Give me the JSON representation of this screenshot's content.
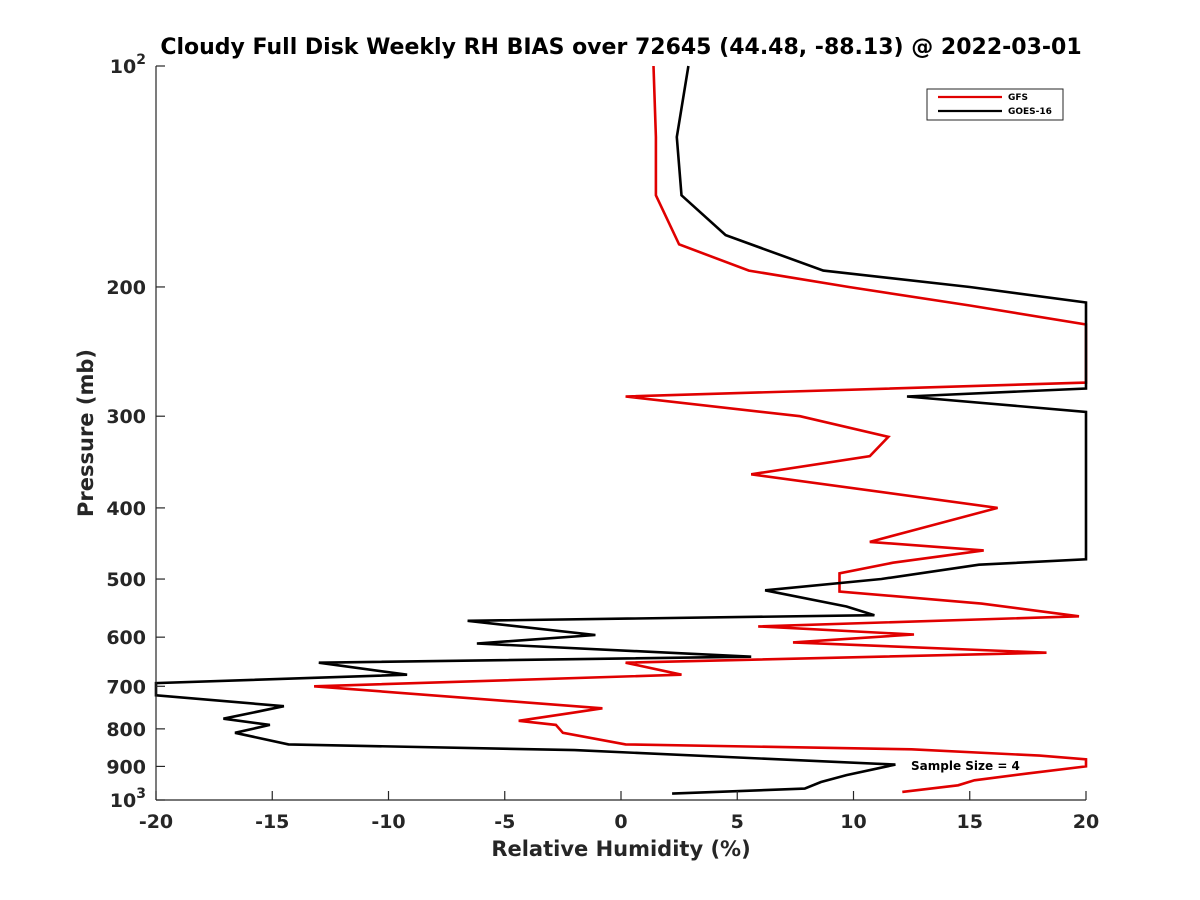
{
  "chart_data": {
    "type": "line",
    "title": "Cloudy Full Disk Weekly RH BIAS over 72645 (44.48, -88.13) @ 2022-03-01",
    "xlabel": "Relative Humidity (%)",
    "ylabel": "Pressure (mb)",
    "xlim": [
      -20,
      20
    ],
    "ylim": [
      100,
      1000
    ],
    "y_scale": "log",
    "y_reversed": true,
    "grid": false,
    "legend_placement": "top-right",
    "xticks": [
      -20,
      -15,
      -10,
      -5,
      0,
      5,
      10,
      15,
      20
    ],
    "xtick_labels": [
      "-20",
      "-15",
      "-10",
      "-5",
      "0",
      "5",
      "10",
      "15",
      "20"
    ],
    "yticks": [
      100,
      200,
      300,
      400,
      500,
      600,
      700,
      800,
      900,
      1000
    ],
    "ytick_labels": [
      {
        "base": "10",
        "exp": "2"
      },
      {
        "base": "200",
        "exp": ""
      },
      {
        "base": "300",
        "exp": ""
      },
      {
        "base": "400",
        "exp": ""
      },
      {
        "base": "500",
        "exp": ""
      },
      {
        "base": "600",
        "exp": ""
      },
      {
        "base": "700",
        "exp": ""
      },
      {
        "base": "800",
        "exp": ""
      },
      {
        "base": "900",
        "exp": ""
      },
      {
        "base": "10",
        "exp": "3"
      }
    ],
    "annotation": "Sample Size = 4",
    "series": [
      {
        "name": "GFS",
        "color": "#e00000",
        "points": [
          [
            1.4,
            100
          ],
          [
            1.5,
            125
          ],
          [
            1.5,
            150
          ],
          [
            2.5,
            175
          ],
          [
            5.5,
            190
          ],
          [
            9.8,
            200
          ],
          [
            15,
            212
          ],
          [
            20,
            225
          ],
          [
            20,
            270
          ],
          [
            0.2,
            282
          ],
          [
            7.7,
            300
          ],
          [
            11.5,
            320
          ],
          [
            10.7,
            340
          ],
          [
            5.6,
            360
          ],
          [
            16.2,
            400
          ],
          [
            12.7,
            428
          ],
          [
            10.7,
            445
          ],
          [
            15.6,
            457
          ],
          [
            11.7,
            475
          ],
          [
            9.4,
            491
          ],
          [
            9.4,
            520
          ],
          [
            15.5,
            540
          ],
          [
            19.7,
            562
          ],
          [
            5.9,
            580
          ],
          [
            12.6,
            595
          ],
          [
            7.4,
            610
          ],
          [
            18.3,
            630
          ],
          [
            0.2,
            650
          ],
          [
            2.6,
            675
          ],
          [
            -13.2,
            700
          ],
          [
            -0.8,
            750
          ],
          [
            -4.4,
            780
          ],
          [
            -2.8,
            790
          ],
          [
            -2.5,
            810
          ],
          [
            0.2,
            840
          ],
          [
            12.5,
            853
          ],
          [
            18,
            870
          ],
          [
            20,
            880
          ],
          [
            20,
            900
          ],
          [
            17.5,
            920
          ],
          [
            15.2,
            940
          ],
          [
            14.5,
            955
          ],
          [
            12.1,
            975
          ]
        ]
      },
      {
        "name": "GOES-16",
        "color": "#000000",
        "points": [
          [
            2.9,
            100
          ],
          [
            2.4,
            125
          ],
          [
            2.6,
            150
          ],
          [
            4.5,
            170
          ],
          [
            8.7,
            190
          ],
          [
            15,
            200
          ],
          [
            20,
            210
          ],
          [
            20,
            275
          ],
          [
            12.3,
            282
          ],
          [
            20,
            296
          ],
          [
            20,
            470
          ],
          [
            15.4,
            478
          ],
          [
            11.2,
            500
          ],
          [
            6.2,
            518
          ],
          [
            9.7,
            545
          ],
          [
            10.9,
            560
          ],
          [
            -6.6,
            570
          ],
          [
            -1.1,
            596
          ],
          [
            -6.2,
            612
          ],
          [
            5.6,
            638
          ],
          [
            -13,
            650
          ],
          [
            -9.2,
            675
          ],
          [
            -20,
            693
          ],
          [
            -20,
            720
          ],
          [
            -14.5,
            745
          ],
          [
            -17.1,
            775
          ],
          [
            -15.1,
            790
          ],
          [
            -16.6,
            810
          ],
          [
            -14.3,
            840
          ],
          [
            -2,
            855
          ],
          [
            11.8,
            895
          ],
          [
            9.7,
            925
          ],
          [
            8.6,
            945
          ],
          [
            7.9,
            965
          ],
          [
            2.2,
            980
          ]
        ]
      }
    ]
  }
}
